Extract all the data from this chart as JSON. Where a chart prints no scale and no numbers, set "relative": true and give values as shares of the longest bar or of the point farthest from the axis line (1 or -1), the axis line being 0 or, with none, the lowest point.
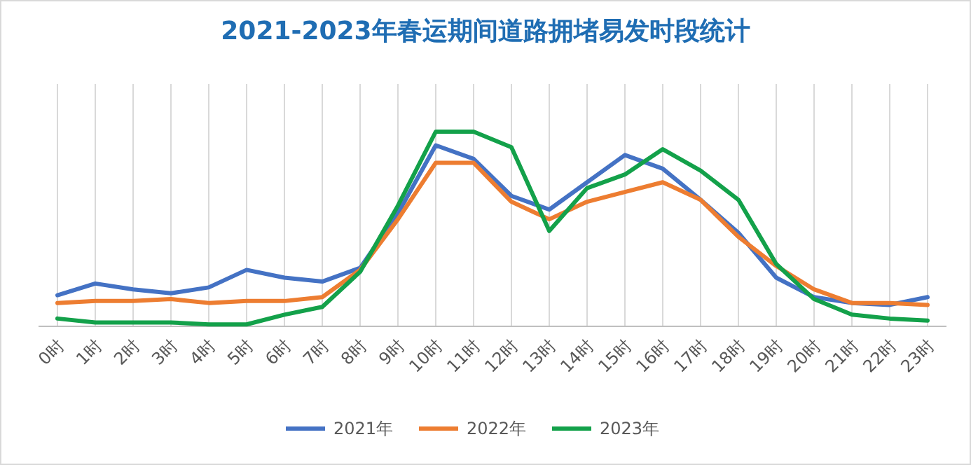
{
  "chart_data": {
    "type": "line",
    "title": "2021-2023年春运期间道路拥堵易发时段统计",
    "categories": [
      "0时",
      "1时",
      "2时",
      "3时",
      "4时",
      "5时",
      "6时",
      "7时",
      "8时",
      "9时",
      "10时",
      "11时",
      "12时",
      "13时",
      "14时",
      "15时",
      "16时",
      "17时",
      "18时",
      "19时",
      "20时",
      "21时",
      "22时",
      "23时"
    ],
    "relative": true,
    "grid": "x",
    "legend": "bottom",
    "series": [
      {
        "name": "2021年",
        "color": "#4472c4",
        "values": [
          0.16,
          0.22,
          0.19,
          0.17,
          0.2,
          0.29,
          0.25,
          0.23,
          0.3,
          0.58,
          0.93,
          0.86,
          0.67,
          0.6,
          0.74,
          0.88,
          0.81,
          0.65,
          0.48,
          0.25,
          0.15,
          0.12,
          0.11,
          0.15
        ]
      },
      {
        "name": "2022年",
        "color": "#ed7d31",
        "values": [
          0.12,
          0.13,
          0.13,
          0.14,
          0.12,
          0.13,
          0.13,
          0.15,
          0.29,
          0.55,
          0.84,
          0.84,
          0.64,
          0.55,
          0.64,
          0.69,
          0.74,
          0.65,
          0.46,
          0.31,
          0.19,
          0.12,
          0.12,
          0.11
        ]
      },
      {
        "name": "2023年",
        "color": "#13a14a",
        "values": [
          0.04,
          0.02,
          0.02,
          0.02,
          0.01,
          0.01,
          0.06,
          0.1,
          0.28,
          0.62,
          1,
          1,
          0.92,
          0.49,
          0.71,
          0.78,
          0.91,
          0.8,
          0.65,
          0.32,
          0.14,
          0.06,
          0.04,
          0.03
        ]
      }
    ]
  }
}
